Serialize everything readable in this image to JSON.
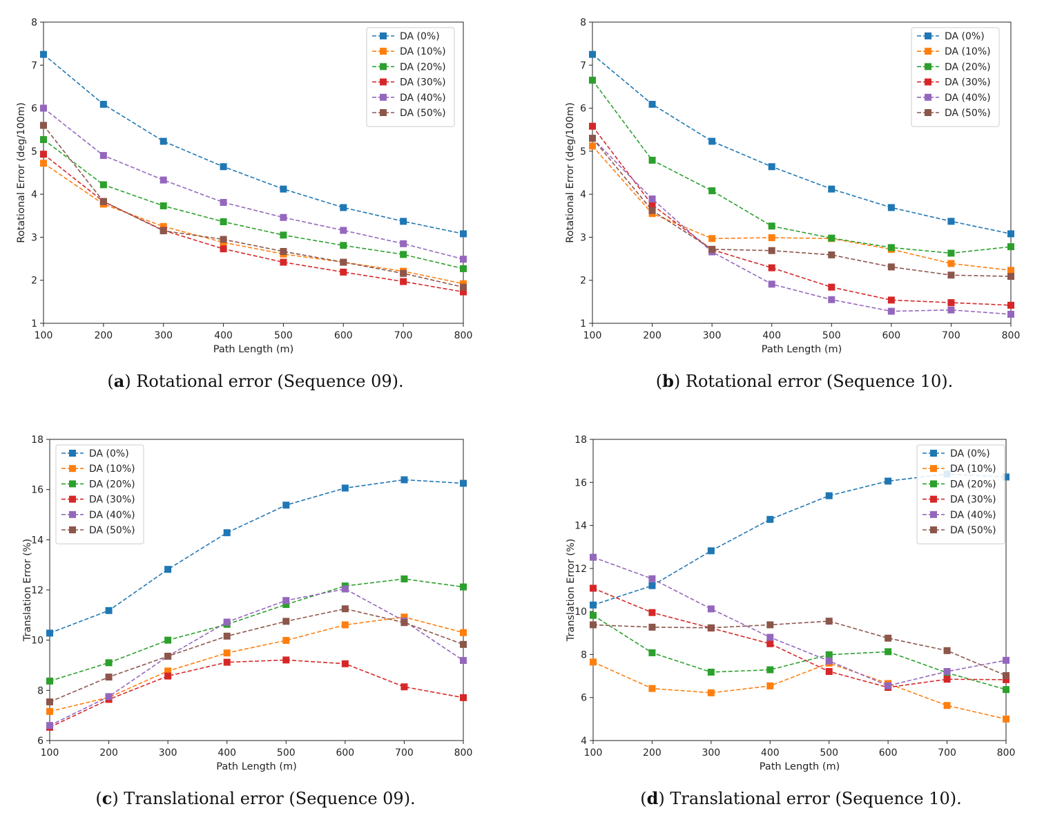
{
  "chart_data": [
    {
      "id": "a",
      "type": "line",
      "caption_letter": "a",
      "caption_text": ") Rotational error (Sequence 09).",
      "xlabel": "Path Length (m)",
      "ylabel": "Rotational Error (deg/100m)",
      "xlim": [
        100,
        800
      ],
      "ylim": [
        1,
        8
      ],
      "xticks": [
        100,
        200,
        300,
        400,
        500,
        600,
        700,
        800
      ],
      "yticks": [
        1,
        2,
        3,
        4,
        5,
        6,
        7,
        8
      ],
      "grid": false,
      "legend": "top-right",
      "x": [
        100,
        200,
        300,
        400,
        500,
        600,
        700,
        800
      ],
      "series": [
        {
          "name": "DA (0%)",
          "color": "#1f77b4",
          "values": [
            7.25,
            6.09,
            5.23,
            4.64,
            4.12,
            3.69,
            3.37,
            3.08
          ]
        },
        {
          "name": "DA (10%)",
          "color": "#ff7f0e",
          "values": [
            4.72,
            3.77,
            3.25,
            2.88,
            2.61,
            2.42,
            2.21,
            1.92
          ]
        },
        {
          "name": "DA (20%)",
          "color": "#2ca02c",
          "values": [
            5.27,
            4.22,
            3.73,
            3.36,
            3.05,
            2.81,
            2.6,
            2.27
          ]
        },
        {
          "name": "DA (30%)",
          "color": "#d62728",
          "values": [
            4.93,
            3.83,
            3.16,
            2.73,
            2.42,
            2.19,
            1.97,
            1.73
          ]
        },
        {
          "name": "DA (40%)",
          "color": "#9467bd",
          "values": [
            6.0,
            4.9,
            4.33,
            3.81,
            3.46,
            3.16,
            2.85,
            2.49
          ]
        },
        {
          "name": "DA (50%)",
          "color": "#8c564b",
          "values": [
            5.6,
            3.83,
            3.15,
            2.95,
            2.67,
            2.42,
            2.16,
            1.84
          ]
        }
      ]
    },
    {
      "id": "b",
      "type": "line",
      "caption_letter": "b",
      "caption_text": ") Rotational error (Sequence 10).",
      "xlabel": "Path Length (m)",
      "ylabel": "Rotational Error (deg/100m)",
      "xlim": [
        100,
        800
      ],
      "ylim": [
        1,
        8
      ],
      "xticks": [
        100,
        200,
        300,
        400,
        500,
        600,
        700,
        800
      ],
      "yticks": [
        1,
        2,
        3,
        4,
        5,
        6,
        7,
        8
      ],
      "grid": false,
      "legend": "top-right",
      "x": [
        100,
        200,
        300,
        400,
        500,
        600,
        700,
        800
      ],
      "series": [
        {
          "name": "DA (0%)",
          "color": "#1f77b4",
          "values": [
            7.25,
            6.09,
            5.23,
            4.64,
            4.12,
            3.69,
            3.37,
            3.08
          ]
        },
        {
          "name": "DA (10%)",
          "color": "#ff7f0e",
          "values": [
            5.12,
            3.55,
            2.97,
            2.99,
            2.97,
            2.72,
            2.39,
            2.23
          ]
        },
        {
          "name": "DA (20%)",
          "color": "#2ca02c",
          "values": [
            6.65,
            4.79,
            4.08,
            3.26,
            2.98,
            2.76,
            2.63,
            2.78
          ]
        },
        {
          "name": "DA (30%)",
          "color": "#d62728",
          "values": [
            5.58,
            3.75,
            2.71,
            2.29,
            1.84,
            1.54,
            1.48,
            1.42
          ]
        },
        {
          "name": "DA (40%)",
          "color": "#9467bd",
          "values": [
            5.3,
            3.89,
            2.66,
            1.91,
            1.55,
            1.28,
            1.31,
            1.21
          ]
        },
        {
          "name": "DA (50%)",
          "color": "#8c564b",
          "values": [
            5.3,
            3.62,
            2.72,
            2.69,
            2.59,
            2.31,
            2.12,
            2.09
          ]
        }
      ]
    },
    {
      "id": "c",
      "type": "line",
      "caption_letter": "c",
      "caption_text": ") Translational error (Sequence 09).",
      "xlabel": "Path Length (m)",
      "ylabel": "Translation Error (%)",
      "xlim": [
        100,
        800
      ],
      "ylim": [
        6,
        18
      ],
      "xticks": [
        100,
        200,
        300,
        400,
        500,
        600,
        700,
        800
      ],
      "yticks": [
        6,
        8,
        10,
        12,
        14,
        16,
        18
      ],
      "grid": false,
      "legend": "top-left",
      "x": [
        100,
        200,
        300,
        400,
        500,
        600,
        700,
        800
      ],
      "series": [
        {
          "name": "DA (0%)",
          "color": "#1f77b4",
          "values": [
            10.28,
            11.18,
            12.82,
            14.28,
            15.38,
            16.06,
            16.39,
            16.25
          ]
        },
        {
          "name": "DA (10%)",
          "color": "#ff7f0e",
          "values": [
            7.16,
            7.72,
            8.77,
            9.49,
            9.99,
            10.61,
            10.92,
            10.3
          ]
        },
        {
          "name": "DA (20%)",
          "color": "#2ca02c",
          "values": [
            8.37,
            9.1,
            10.0,
            10.63,
            11.42,
            12.16,
            12.44,
            12.12
          ]
        },
        {
          "name": "DA (30%)",
          "color": "#d62728",
          "values": [
            6.53,
            7.64,
            8.57,
            9.12,
            9.21,
            9.06,
            8.14,
            7.71
          ]
        },
        {
          "name": "DA (40%)",
          "color": "#9467bd",
          "values": [
            6.6,
            7.75,
            9.36,
            10.72,
            11.58,
            12.04,
            10.76,
            9.19
          ]
        },
        {
          "name": "DA (50%)",
          "color": "#8c564b",
          "values": [
            7.54,
            8.53,
            9.36,
            10.16,
            10.75,
            11.25,
            10.7,
            9.83
          ]
        }
      ]
    },
    {
      "id": "d",
      "type": "line",
      "caption_letter": "d",
      "caption_text": ") Translational error (Sequence 10).",
      "xlabel": "Path Length (m)",
      "ylabel": "Translation Error (%)",
      "xlim": [
        100,
        800
      ],
      "ylim": [
        4,
        18
      ],
      "xticks": [
        100,
        200,
        300,
        400,
        500,
        600,
        700,
        800
      ],
      "yticks": [
        4,
        6,
        8,
        10,
        12,
        14,
        16,
        18
      ],
      "grid": false,
      "legend": "top-right",
      "x": [
        100,
        200,
        300,
        400,
        500,
        600,
        700,
        800
      ],
      "series": [
        {
          "name": "DA (0%)",
          "color": "#1f77b4",
          "values": [
            10.3,
            11.2,
            12.82,
            14.28,
            15.38,
            16.06,
            16.39,
            16.25
          ]
        },
        {
          "name": "DA (10%)",
          "color": "#ff7f0e",
          "values": [
            7.65,
            6.42,
            6.22,
            6.54,
            7.6,
            6.65,
            5.63,
            5.0
          ]
        },
        {
          "name": "DA (20%)",
          "color": "#2ca02c",
          "values": [
            9.82,
            8.08,
            7.18,
            7.29,
            7.99,
            8.13,
            7.15,
            6.37
          ]
        },
        {
          "name": "DA (30%)",
          "color": "#d62728",
          "values": [
            11.08,
            9.95,
            9.23,
            8.5,
            7.21,
            6.47,
            6.85,
            6.83
          ]
        },
        {
          "name": "DA (40%)",
          "color": "#9467bd",
          "values": [
            12.52,
            11.52,
            10.12,
            8.8,
            7.7,
            6.55,
            7.21,
            7.73
          ]
        },
        {
          "name": "DA (50%)",
          "color": "#8c564b",
          "values": [
            9.38,
            9.27,
            9.24,
            9.38,
            9.55,
            8.76,
            8.18,
            7.02
          ]
        }
      ]
    }
  ]
}
